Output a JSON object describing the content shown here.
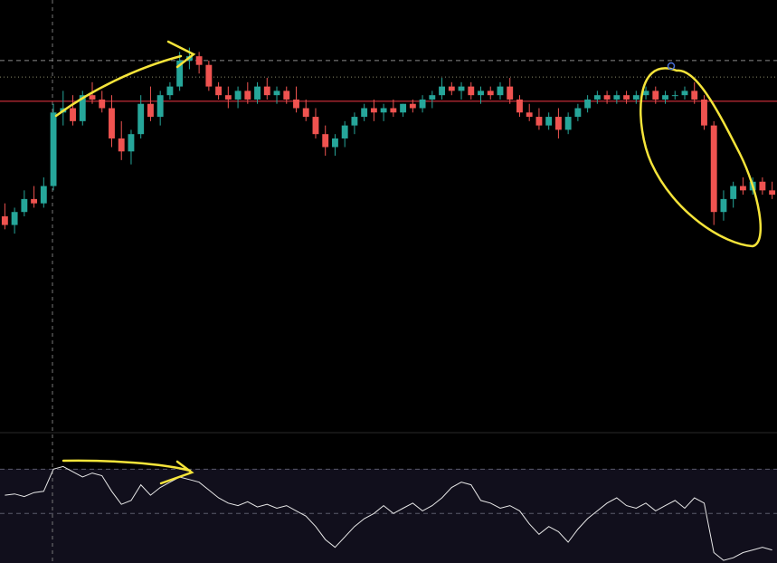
{
  "chart_data": [
    {
      "type": "candlestick",
      "up_color": "#26a69a",
      "down_color": "#ef5350",
      "ylim": [
        0,
        100
      ],
      "levels": [
        {
          "value": 86,
          "color": "#8a8a8a",
          "style": "dashed"
        },
        {
          "value": 82.2,
          "color": "#8a8a6a",
          "style": "dotted"
        },
        {
          "value": 76.6,
          "color": "#f23645",
          "style": "solid"
        }
      ],
      "open": [
        50,
        48,
        51,
        54,
        53,
        57,
        74,
        75,
        72,
        78,
        77,
        75,
        68,
        65,
        69,
        76,
        73,
        78,
        80,
        86,
        87,
        85,
        80,
        78,
        77,
        79,
        77,
        80,
        78,
        79,
        77,
        75,
        73,
        69,
        66,
        68,
        71,
        73,
        75,
        74,
        75,
        74,
        76,
        75,
        77,
        78,
        80,
        79,
        80,
        78,
        79,
        78,
        80,
        77,
        74,
        73,
        71,
        73,
        70,
        73,
        75,
        77,
        78,
        77,
        78,
        77,
        78,
        79,
        77,
        78,
        78,
        79,
        77,
        71,
        51,
        54,
        57,
        56,
        58,
        56
      ],
      "high": [
        53,
        52,
        56,
        57,
        59,
        76,
        79,
        78,
        79,
        81,
        79,
        78,
        72,
        70,
        78,
        80,
        79,
        81,
        88,
        89,
        88,
        86,
        81,
        80,
        80,
        81,
        81,
        82,
        80,
        80,
        80,
        77,
        75,
        71,
        69,
        72,
        74,
        76,
        77,
        76,
        77,
        76,
        77,
        78,
        79,
        82,
        81,
        81,
        81,
        80,
        80,
        81,
        82,
        78,
        76,
        75,
        74,
        75,
        74,
        76,
        78,
        79,
        79,
        79,
        79,
        79,
        80,
        80,
        79,
        79,
        80,
        81,
        78,
        72,
        56,
        58,
        59,
        59,
        59,
        58
      ],
      "low": [
        47,
        46,
        50,
        52,
        52,
        56,
        71,
        71,
        71,
        76,
        74,
        66,
        63,
        62,
        68,
        72,
        71,
        77,
        79,
        84,
        83,
        79,
        77,
        75,
        75,
        76,
        76,
        77,
        76,
        76,
        74,
        72,
        68,
        64,
        64,
        66,
        69,
        72,
        72,
        72,
        73,
        73,
        74,
        74,
        75,
        77,
        78,
        77,
        77,
        76,
        77,
        77,
        76,
        73,
        72,
        70,
        70,
        68,
        69,
        72,
        74,
        76,
        76,
        76,
        76,
        76,
        77,
        76,
        76,
        77,
        77,
        76,
        70,
        48,
        49,
        52,
        55,
        55,
        55,
        54
      ],
      "close": [
        48,
        51,
        54,
        53,
        57,
        74,
        75,
        72,
        78,
        77,
        75,
        68,
        65,
        69,
        76,
        73,
        78,
        80,
        86,
        87,
        85,
        80,
        78,
        77,
        79,
        77,
        80,
        78,
        79,
        77,
        75,
        73,
        69,
        66,
        68,
        71,
        73,
        75,
        74,
        75,
        74,
        76,
        75,
        77,
        78,
        80,
        79,
        80,
        78,
        79,
        78,
        80,
        77,
        74,
        73,
        71,
        73,
        70,
        73,
        75,
        77,
        78,
        77,
        78,
        77,
        78,
        79,
        77,
        78,
        78,
        79,
        77,
        71,
        51,
        54,
        57,
        56,
        58,
        56,
        55
      ]
    },
    {
      "type": "line",
      "color": "#e8e8e8",
      "ylim": [
        0,
        100
      ],
      "levels": [
        72,
        38
      ],
      "values": [
        52,
        53,
        51,
        54,
        55,
        72,
        74,
        70,
        66,
        69,
        67,
        55,
        45,
        48,
        60,
        52,
        58,
        62,
        66,
        64,
        62,
        56,
        50,
        46,
        44,
        47,
        43,
        45,
        42,
        44,
        40,
        36,
        28,
        18,
        12,
        20,
        28,
        34,
        38,
        44,
        38,
        42,
        46,
        40,
        44,
        50,
        58,
        62,
        60,
        48,
        46,
        42,
        44,
        40,
        30,
        22,
        28,
        24,
        16,
        26,
        34,
        40,
        46,
        50,
        44,
        42,
        46,
        40,
        44,
        48,
        42,
        50,
        46,
        8,
        2,
        4,
        8,
        10,
        12,
        10
      ]
    }
  ]
}
